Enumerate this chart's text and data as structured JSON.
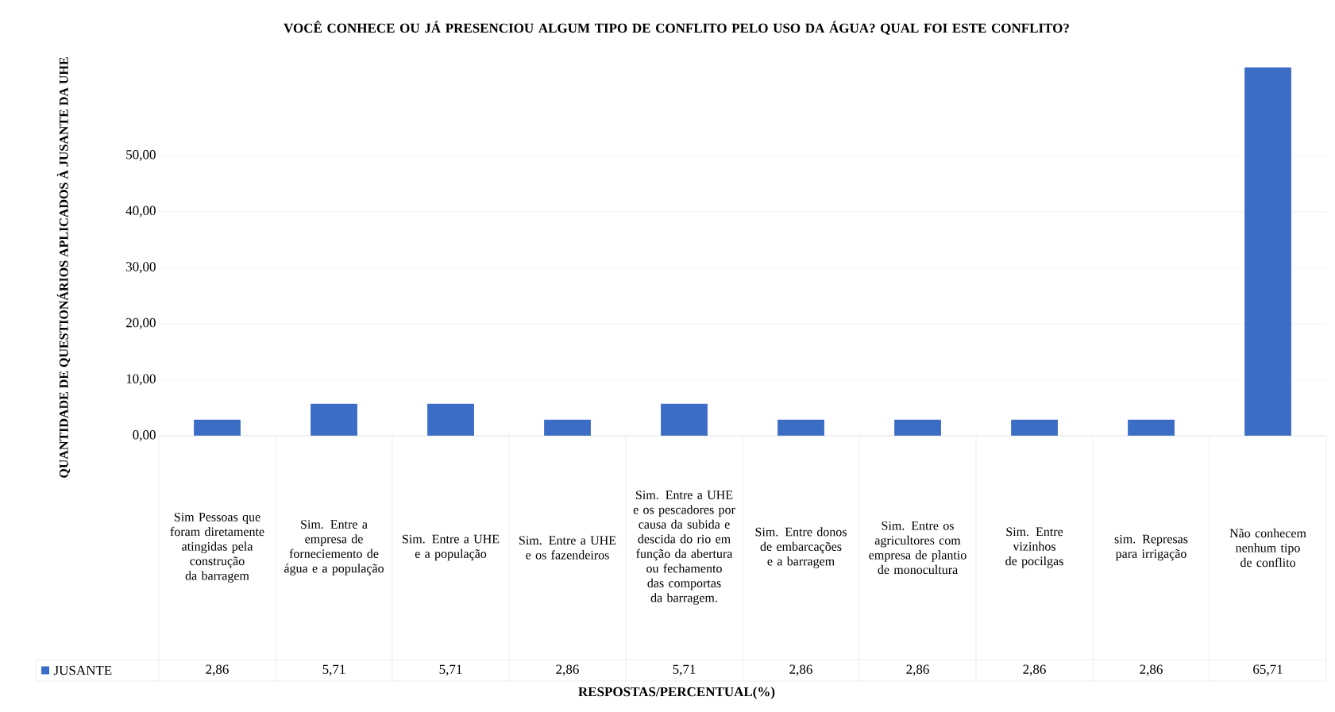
{
  "chart_data": {
    "type": "bar",
    "title": "VOCÊ CONHECE  OU JÁ PRESENCIOU ALGUM TIPO DE CONFLITO PELO USO DA ÁGUA? QUAL FOI ESTE CONFLITO?",
    "annotations": [
      "RESPOSTAS/PERCENTUAL(%)"
    ],
    "ylabel": "QUANTIDADE DE QUESTIONÁRIOS APLICADOS À JUSANTE DA UHE",
    "categories": [
      "Sim Pessoas que foram diretamente atingidas pela construção da barragem",
      "Sim. Entre a empresa de forneciemento de água e a população",
      "Sim. Entre a UHE e a população",
      "Sim. Entre a UHE e os fazendeiros",
      "Sim. Entre a UHE e os pescadores por causa da subida e descida do rio em função da abertura ou fechamento das comportas da barragem.",
      "Sim. Entre donos de embarcações e a barragem",
      "Sim. Entre os agricultores com empresa de plantio de monocultura",
      "Sim. Entre vizinhos de pocilgas",
      "sim. Represas para irrigação",
      "Não conhecem nenhum tipo de conflito"
    ],
    "series": [
      {
        "name": "JUSANTE",
        "color": "#3b6cc6",
        "values": [
          2.86,
          5.71,
          5.71,
          2.86,
          5.71,
          2.86,
          2.86,
          2.86,
          2.86,
          65.71
        ],
        "value_labels": [
          "2,86",
          "5,71",
          "5,71",
          "2,86",
          "5,71",
          "2,86",
          "2,86",
          "2,86",
          "2,86",
          "65,71"
        ]
      }
    ],
    "ylim": [
      0,
      66
    ],
    "yticks": [
      {
        "value": 0,
        "label": "0,00"
      },
      {
        "value": 10,
        "label": "10,00"
      },
      {
        "value": 20,
        "label": "20,00"
      },
      {
        "value": 30,
        "label": "30,00"
      },
      {
        "value": 40,
        "label": "40,00"
      },
      {
        "value": 50,
        "label": "50,00"
      }
    ],
    "grid": true,
    "legend": "bottom"
  }
}
